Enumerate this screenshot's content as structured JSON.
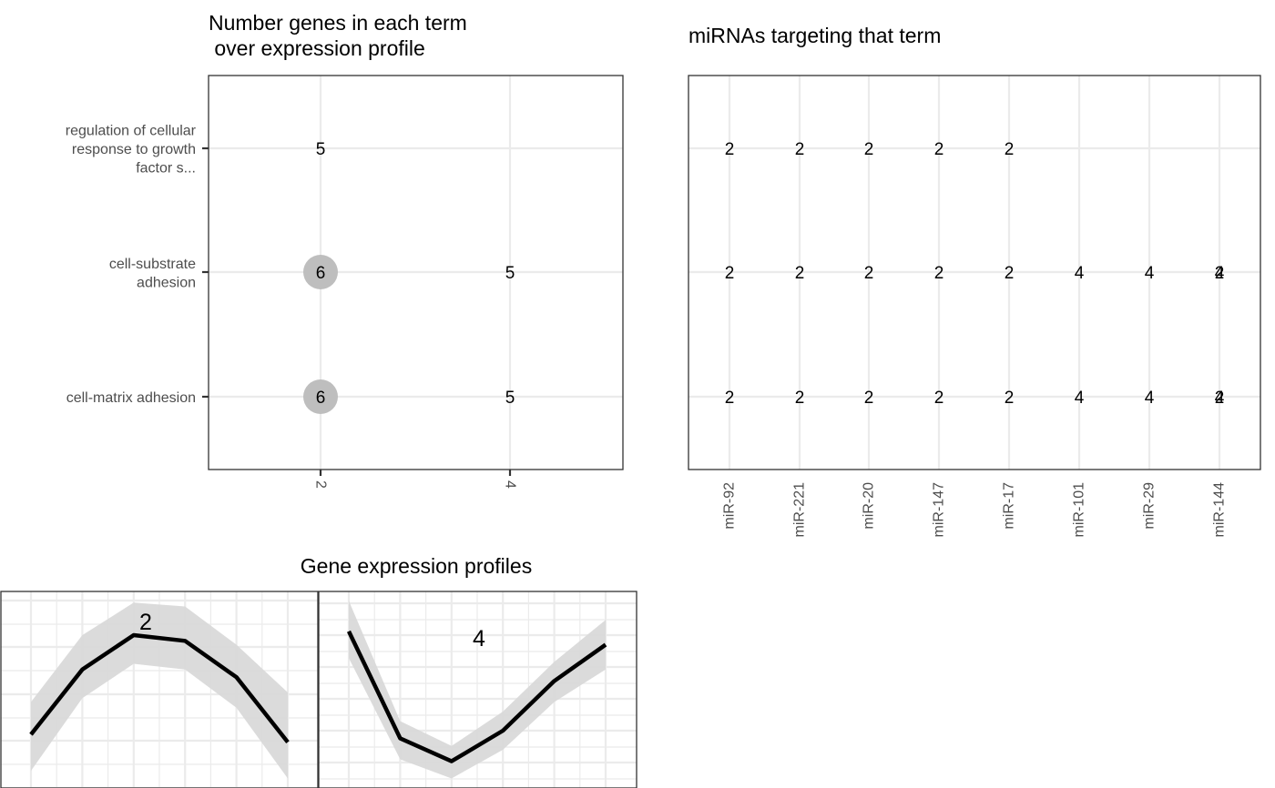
{
  "chart_data": [
    {
      "type": "table",
      "title_lines": [
        "Number genes in each term",
        " over expression profile"
      ],
      "rows": [
        "regulation of cellular response to growth factor s...",
        "cell-substrate adhesion",
        "cell-matrix adhesion"
      ],
      "row_label_lines": [
        [
          "regulation of cellular",
          "response to growth",
          "factor s..."
        ],
        [
          "cell-substrate",
          "adhesion"
        ],
        [
          "cell-matrix adhesion"
        ]
      ],
      "columns": [
        "2",
        "4"
      ],
      "cells": [
        {
          "row": 0,
          "col": 0,
          "value": "5",
          "highlighted": false
        },
        {
          "row": 1,
          "col": 0,
          "value": "6",
          "highlighted": true
        },
        {
          "row": 1,
          "col": 1,
          "value": "5",
          "highlighted": false
        },
        {
          "row": 2,
          "col": 0,
          "value": "6",
          "highlighted": true
        },
        {
          "row": 2,
          "col": 1,
          "value": "5",
          "highlighted": false
        }
      ],
      "highlight_color": "#bebebe"
    },
    {
      "type": "table",
      "title": "miRNAs targeting that term",
      "columns": [
        "miR-92",
        "miR-221",
        "miR-20",
        "miR-147",
        "miR-17",
        "miR-101",
        "miR-29",
        "miR-144"
      ],
      "rows_count": 3,
      "values": [
        [
          "2",
          "2",
          "2",
          "2",
          "2",
          null,
          null,
          null
        ],
        [
          "2",
          "2",
          "2",
          "2",
          "2",
          "4",
          "4",
          "4"
        ],
        [
          "2",
          "2",
          "2",
          "2",
          "2",
          "4",
          "4",
          "4"
        ]
      ],
      "overlay_values": [
        [
          null,
          null,
          null,
          null,
          null,
          null,
          null,
          null
        ],
        [
          null,
          null,
          null,
          null,
          null,
          null,
          null,
          "2"
        ],
        [
          null,
          null,
          null,
          null,
          null,
          null,
          null,
          "2"
        ]
      ]
    },
    {
      "type": "line",
      "title": "Gene expression profiles",
      "facets": [
        {
          "label": "2",
          "x": [
            1,
            2,
            3,
            4,
            5,
            6
          ],
          "y": [
            0.28,
            0.62,
            0.8,
            0.77,
            0.58,
            0.24
          ],
          "lower": [
            0.09,
            0.47,
            0.65,
            0.62,
            0.42,
            0.05
          ],
          "upper": [
            0.45,
            0.8,
            0.97,
            0.95,
            0.75,
            0.5
          ],
          "ylim": [
            0,
            1
          ]
        },
        {
          "label": "4",
          "x": [
            1,
            2,
            3,
            4,
            5,
            6
          ],
          "y": [
            0.82,
            0.26,
            0.14,
            0.3,
            0.56,
            0.75
          ],
          "lower": [
            0.68,
            0.15,
            0.05,
            0.2,
            0.45,
            0.62
          ],
          "upper": [
            0.98,
            0.35,
            0.22,
            0.4,
            0.66,
            0.88
          ],
          "ylim": [
            0,
            1
          ]
        }
      ],
      "band_color": "#d9d9d9",
      "line_color": "#000000"
    }
  ]
}
